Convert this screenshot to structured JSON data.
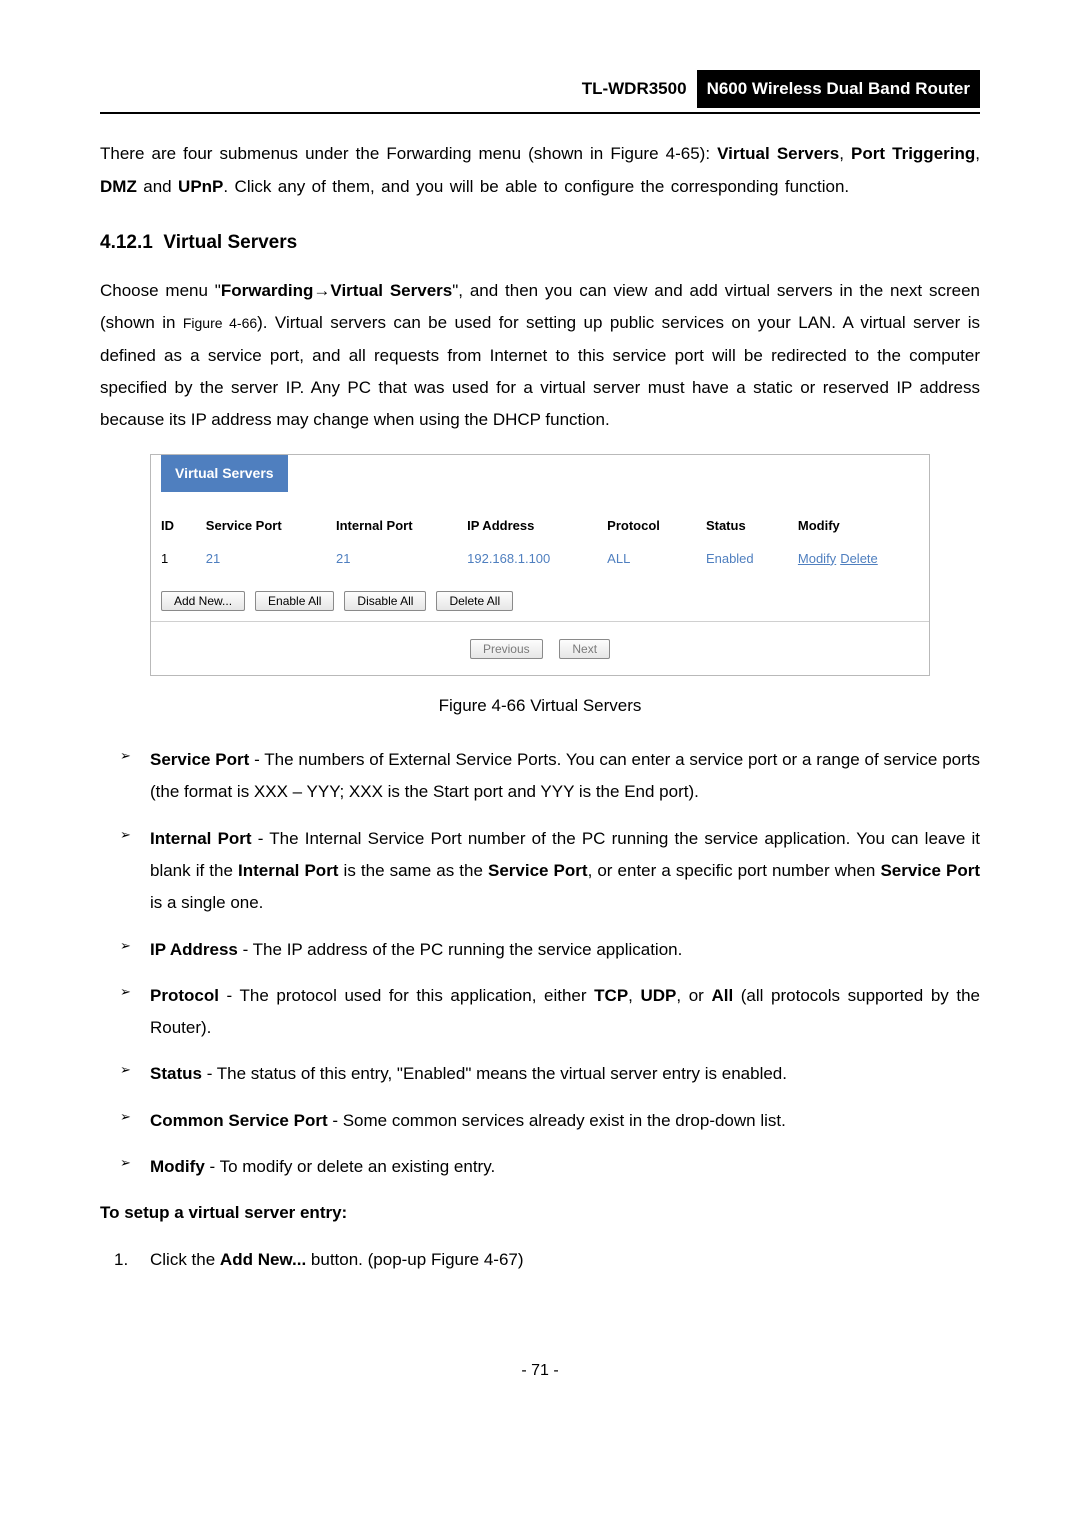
{
  "header": {
    "model": "TL-WDR3500",
    "title": "N600 Wireless Dual Band Router"
  },
  "intro": {
    "text_before": "There are four submenus under the Forwarding menu (shown in Figure 4-65): ",
    "bold1": "Virtual Servers",
    "sep1": ", ",
    "bold2": "Port Triggering",
    "sep2": ", ",
    "bold3": "DMZ",
    "sep3": " and ",
    "bold4": "UPnP",
    "text_after": ". Click any of them, and you will be able to configure the corresponding function."
  },
  "section": {
    "number": "4.12.1",
    "title": "Virtual Servers"
  },
  "para2": {
    "t1": "Choose menu \"",
    "b1": "Forwarding",
    "arrow": "→",
    "b2": "Virtual Servers",
    "t2": "\", and then you can view and add virtual servers in the next screen (shown in ",
    "ref": "Figure 4-66",
    "t3": "). Virtual servers can be used for setting up public services on your LAN. A virtual server is defined as a service port, and all requests from Internet to this service port will be redirected to the computer specified by the server IP. Any PC that was used for a virtual server must have a static or reserved IP address because its IP address may change when using the DHCP function."
  },
  "vs": {
    "title": "Virtual Servers",
    "columns": [
      "ID",
      "Service Port",
      "Internal Port",
      "IP Address",
      "Protocol",
      "Status",
      "Modify"
    ],
    "row": {
      "id": "1",
      "service_port": "21",
      "internal_port": "21",
      "ip": "192.168.1.100",
      "protocol": "ALL",
      "status": "Enabled",
      "modify": "Modify",
      "delete": "Delete"
    },
    "btns": {
      "add": "Add New...",
      "enable": "Enable All",
      "disable": "Disable All",
      "delete": "Delete All",
      "prev": "Previous",
      "next": "Next"
    }
  },
  "figcap": "Figure 4-66 Virtual Servers",
  "bullets": {
    "serviceport": {
      "label": "Service Port",
      "text": " - The numbers of External Service Ports. You can enter a service port or a range of service ports (the format is XXX – YYY; XXX is the Start port and YYY is the End port)."
    },
    "internalport": {
      "label": "Internal Port",
      "t1": " - The Internal Service Port number of the PC running the service application. You can leave it blank if the ",
      "b1": "Internal Port",
      "t2": " is the same as the ",
      "b2": "Service Port",
      "t3": ", or enter a specific port number when ",
      "b3": "Service Port",
      "t4": " is a single one."
    },
    "ipaddress": {
      "label": "IP Address",
      "text": " - The IP address of the PC running the service application."
    },
    "protocol": {
      "label": "Protocol",
      "t1": " - The protocol used for this application, either ",
      "b1": "TCP",
      "t2": ", ",
      "b2": "UDP",
      "t3": ", or ",
      "b3": "All",
      "t4": " (all protocols supported by the Router)."
    },
    "status": {
      "label": "Status",
      "text": " - The status of this entry, \"Enabled\" means the virtual server entry is enabled."
    },
    "common": {
      "label": "Common Service Port",
      "text": " - Some common services already exist in the drop-down list."
    },
    "modify": {
      "label": "Modify",
      "text": " - To modify or delete an existing entry."
    }
  },
  "setup": {
    "heading": "To setup a virtual server entry:",
    "step1": {
      "num": "1.",
      "t1": "Click the ",
      "b1": "Add New...",
      "t2": " button. (pop-up Figure 4-67)"
    }
  },
  "pagenum": "- 71 -"
}
